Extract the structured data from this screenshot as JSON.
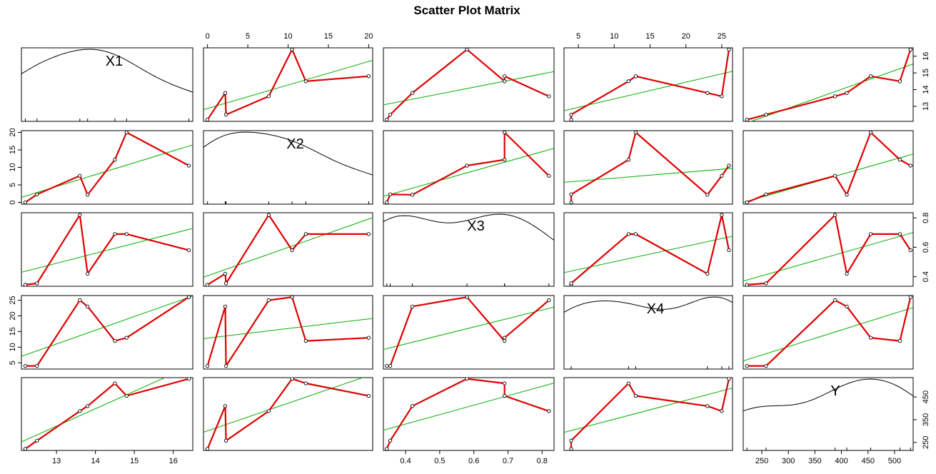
{
  "chart_data": {
    "type": "scatter",
    "title": "Scatter Plot Matrix",
    "variables": [
      {
        "name": "X1",
        "range": [
          12.1,
          16.5
        ],
        "values": [
          12.2,
          12.5,
          13.6,
          13.8,
          14.5,
          14.8,
          16.4
        ]
      },
      {
        "name": "X2",
        "range": [
          -0.5,
          20.5
        ],
        "values": [
          0,
          2.3,
          7.6,
          2.2,
          12.2,
          20.0,
          10.5
        ]
      },
      {
        "name": "X3",
        "range": [
          0.335,
          0.835
        ],
        "values": [
          0.345,
          0.355,
          0.82,
          0.42,
          0.69,
          0.69,
          0.58
        ]
      },
      {
        "name": "X4",
        "range": [
          3,
          26.5
        ],
        "values": [
          4,
          4,
          25,
          23,
          12,
          13,
          26
        ]
      },
      {
        "name": "Y",
        "range": [
          215,
          535
        ],
        "values": [
          222,
          258,
          388,
          410,
          510,
          455,
          530
        ]
      }
    ],
    "ticks": {
      "X1": [
        "13",
        "14",
        "15",
        "16"
      ],
      "X2": [
        "0",
        "5",
        "10",
        "15",
        "20"
      ],
      "X3": [
        "0.4",
        "0.5",
        "0.6",
        "0.7",
        "0.8"
      ],
      "X4": [
        "5",
        "10",
        "15",
        "20",
        "25"
      ],
      "Y": [
        "250",
        "300",
        "350",
        "400",
        "450",
        "500"
      ],
      "X1_right": [
        "13",
        "14",
        "15",
        "16"
      ],
      "X3_right": [
        "0.4",
        "0.6",
        "0.8"
      ],
      "Y_right": [
        "250",
        "350",
        "450"
      ],
      "X2_left": [
        "0",
        "5",
        "10",
        "15",
        "20"
      ],
      "X4_left": [
        "5",
        "10",
        "15",
        "20",
        "25"
      ]
    },
    "colors": {
      "smoother": "#e00000",
      "regression": "#00b000",
      "points": "#000000"
    },
    "diagonal": "density",
    "grid": false
  }
}
